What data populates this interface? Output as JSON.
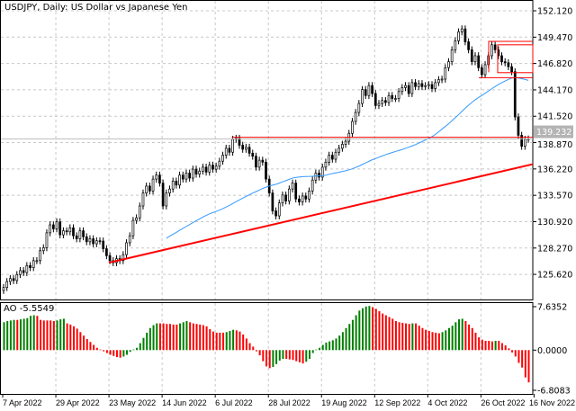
{
  "header": {
    "title": "USDJPY, Daily:  US Dollar vs Japanese Yen"
  },
  "colors": {
    "up_candle": "#ffffff",
    "down_candle": "#000000",
    "ma": "#3399ff",
    "objects": "#ff0000",
    "ao_up": "#008000",
    "ao_down": "#ff0000",
    "grid": "#c8c8c8",
    "price_label_bg": "#b4b4b4"
  },
  "chart_data": [
    {
      "type": "candlestick",
      "title": "USDJPY, Daily:  US Dollar vs Japanese Yen",
      "ylim": [
        123.1,
        153.2
      ],
      "y_ticks": [
        "152.120",
        "149.470",
        "146.820",
        "144.170",
        "141.520",
        "138.870",
        "136.220",
        "133.570",
        "130.920",
        "128.270",
        "125.620"
      ],
      "x_ticks": [
        "7 Apr 2022",
        "29 Apr 2022",
        "23 May 2022",
        "14 Jun 2022",
        "6 Jul 2022",
        "28 Jul 2022",
        "19 Aug 2022",
        "12 Sep 2022",
        "4 Oct 2022",
        "26 Oct 2022",
        "16 Nov 2022"
      ],
      "grid": true,
      "current_price": "139.232",
      "close": [
        124.3,
        124.9,
        125.2,
        125.0,
        125.6,
        126.0,
        125.8,
        126.5,
        126.3,
        127.0,
        127.0,
        128.0,
        128.3,
        129.8,
        130.6,
        130.2,
        130.9,
        129.6,
        130.0,
        129.9,
        130.3,
        129.5,
        129.2,
        130.0,
        129.4,
        128.9,
        129.2,
        128.7,
        129.0,
        128.97,
        128.2,
        127.5,
        127.0,
        126.8,
        127.2,
        127.0,
        127.6,
        128.8,
        129.5,
        131.05,
        131.3,
        132.5,
        133.8,
        134.5,
        134.0,
        135.2,
        135.6,
        134.8,
        132.5,
        133.8,
        134.2,
        135.0,
        134.6,
        135.6,
        135.2,
        135.8,
        135.3,
        136.2,
        135.7,
        136.0,
        136.4,
        135.9,
        136.6,
        136.2,
        136.5,
        137.0,
        137.6,
        138.3,
        137.9,
        139.2,
        139.3,
        138.6,
        138.2,
        138.4,
        137.8,
        137.5,
        136.4,
        137.1,
        136.9,
        135.2,
        133.8,
        132.0,
        131.5,
        132.8,
        133.6,
        133.0,
        134.2,
        134.8,
        133.2,
        132.9,
        133.5,
        133.2,
        134.0,
        135.1,
        135.8,
        135.4,
        136.4,
        136.9,
        137.6,
        137.2,
        137.9,
        138.3,
        138.7,
        139.0,
        139.8,
        141.0,
        141.9,
        142.8,
        144.2,
        143.6,
        144.6,
        143.8,
        142.6,
        142.8,
        143.1,
        142.9,
        143.6,
        143.3,
        143.3,
        144.0,
        144.4,
        144.6,
        143.8,
        144.9,
        144.5,
        144.8,
        144.5,
        144.6,
        144.7,
        144.3,
        144.9,
        145.2,
        145.25,
        146.4,
        147.0,
        148.2,
        149.1,
        150.0,
        150.3,
        149.0,
        148.2,
        147.0,
        147.6,
        146.4,
        145.7,
        146.7,
        147.6,
        148.7,
        148.2,
        147.6,
        147.0,
        146.9,
        146.5,
        146.0,
        141.45,
        139.6,
        138.5,
        139.2,
        139.232
      ],
      "moving_average_period": 50,
      "objects": {
        "trendline": {
          "from": {
            "date": "23 May 2022",
            "price": 126.8
          },
          "to": {
            "date": "16 Nov 2022",
            "price": 136.7
          }
        },
        "horizontal_line": {
          "from_date": "6 Jul 2022",
          "price": 139.4
        },
        "rectangles": [
          {
            "top": 149.05,
            "bottom": 145.4
          },
          {
            "top": 148.7,
            "bottom": 145.9
          }
        ]
      }
    },
    {
      "type": "bar",
      "title": "AO",
      "label": "AO -5.5549",
      "y_ticks": [
        "7.6352",
        "0.0000",
        "-6.8083"
      ],
      "values": [
        4.8,
        5.0,
        5.1,
        5.2,
        5.2,
        5.3,
        5.4,
        5.5,
        5.9,
        6.0,
        5.9,
        5.2,
        5.1,
        5.1,
        5.1,
        5.0,
        5.1,
        5.3,
        5.4,
        4.6,
        4.4,
        4.1,
        3.7,
        3.1,
        2.5,
        1.9,
        1.4,
        0.9,
        0.4,
        0.1,
        -0.2,
        -0.5,
        -0.8,
        -1.0,
        -1.2,
        -1.3,
        -1.1,
        -0.8,
        -0.3,
        0.1,
        0.4,
        1.2,
        2.1,
        3.0,
        3.8,
        4.3,
        4.6,
        4.6,
        4.6,
        4.5,
        4.5,
        4.4,
        4.4,
        4.6,
        4.8,
        5.0,
        4.8,
        4.6,
        4.5,
        4.4,
        4.3,
        4.1,
        3.6,
        3.2,
        3.0,
        3.0,
        3.0,
        3.1,
        3.3,
        3.5,
        3.4,
        3.2,
        2.7,
        2.0,
        1.2,
        0.6,
        -0.2,
        -0.9,
        -1.9,
        -2.8,
        -3.1,
        -2.9,
        -2.4,
        -1.8,
        -1.5,
        -1.5,
        -1.6,
        -1.7,
        -1.9,
        -2.1,
        -2.3,
        -2.0,
        -1.5,
        -0.5,
        0.1,
        0.4,
        0.9,
        1.3,
        1.5,
        1.7,
        2.0,
        2.5,
        3.1,
        3.8,
        4.5,
        5.2,
        6.0,
        6.8,
        7.2,
        7.5,
        7.6,
        7.4,
        7.1,
        6.7,
        6.3,
        6.0,
        5.7,
        5.4,
        5.0,
        4.8,
        4.7,
        4.6,
        4.5,
        4.6,
        4.6,
        4.2,
        3.8,
        3.5,
        3.3,
        3.1,
        3.0,
        2.9,
        3.1,
        3.4,
        3.8,
        4.2,
        4.8,
        5.3,
        5.4,
        5.0,
        4.4,
        3.8,
        3.0,
        2.2,
        1.8,
        1.6,
        1.6,
        1.5,
        1.6,
        1.6,
        1.2,
        0.8,
        0.3,
        -0.4,
        -1.1,
        -2.2,
        -3.0,
        -4.7,
        -5.5549
      ],
      "ylim": [
        -6.8083,
        7.6352
      ]
    }
  ]
}
